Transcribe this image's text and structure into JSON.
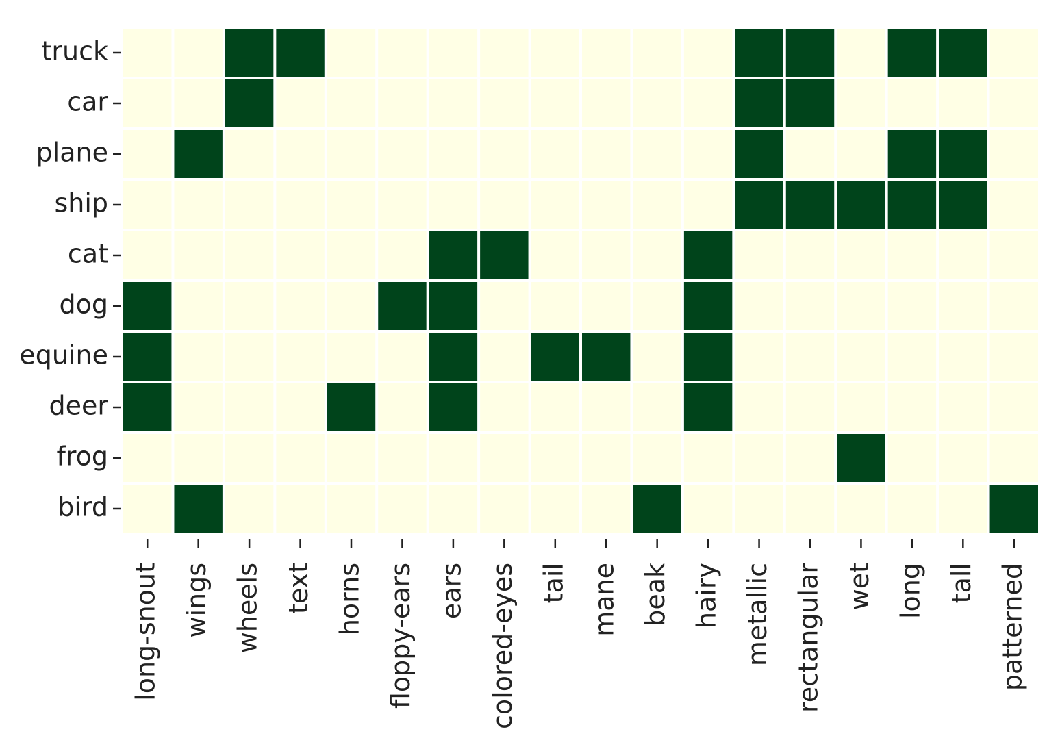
{
  "chart_data": {
    "type": "heatmap",
    "rows": [
      "truck",
      "car",
      "plane",
      "ship",
      "cat",
      "dog",
      "equine",
      "deer",
      "frog",
      "bird"
    ],
    "columns": [
      "long-snout",
      "wings",
      "wheels",
      "text",
      "horns",
      "floppy-ears",
      "ears",
      "colored-eyes",
      "tail",
      "mane",
      "beak",
      "hairy",
      "metallic",
      "rectangular",
      "wet",
      "long",
      "tall",
      "patterned"
    ],
    "values": [
      [
        0,
        0,
        1,
        1,
        0,
        0,
        0,
        0,
        0,
        0,
        0,
        0,
        1,
        1,
        0,
        1,
        1,
        0
      ],
      [
        0,
        0,
        1,
        0,
        0,
        0,
        0,
        0,
        0,
        0,
        0,
        0,
        1,
        1,
        0,
        0,
        0,
        0
      ],
      [
        0,
        1,
        0,
        0,
        0,
        0,
        0,
        0,
        0,
        0,
        0,
        0,
        1,
        0,
        0,
        1,
        1,
        0
      ],
      [
        0,
        0,
        0,
        0,
        0,
        0,
        0,
        0,
        0,
        0,
        0,
        0,
        1,
        1,
        1,
        1,
        1,
        0
      ],
      [
        0,
        0,
        0,
        0,
        0,
        0,
        1,
        1,
        0,
        0,
        0,
        1,
        0,
        0,
        0,
        0,
        0,
        0
      ],
      [
        1,
        0,
        0,
        0,
        0,
        1,
        1,
        0,
        0,
        0,
        0,
        1,
        0,
        0,
        0,
        0,
        0,
        0
      ],
      [
        1,
        0,
        0,
        0,
        0,
        0,
        1,
        0,
        1,
        1,
        0,
        1,
        0,
        0,
        0,
        0,
        0,
        0
      ],
      [
        1,
        0,
        0,
        0,
        1,
        0,
        1,
        0,
        0,
        0,
        0,
        1,
        0,
        0,
        0,
        0,
        0,
        0
      ],
      [
        0,
        0,
        0,
        0,
        0,
        0,
        0,
        0,
        0,
        0,
        0,
        0,
        0,
        0,
        1,
        0,
        0,
        0
      ],
      [
        0,
        1,
        0,
        0,
        0,
        0,
        0,
        0,
        0,
        0,
        1,
        0,
        0,
        0,
        0,
        0,
        0,
        1
      ]
    ],
    "colors": [
      "#ffffe5",
      "#00441b"
    ]
  }
}
